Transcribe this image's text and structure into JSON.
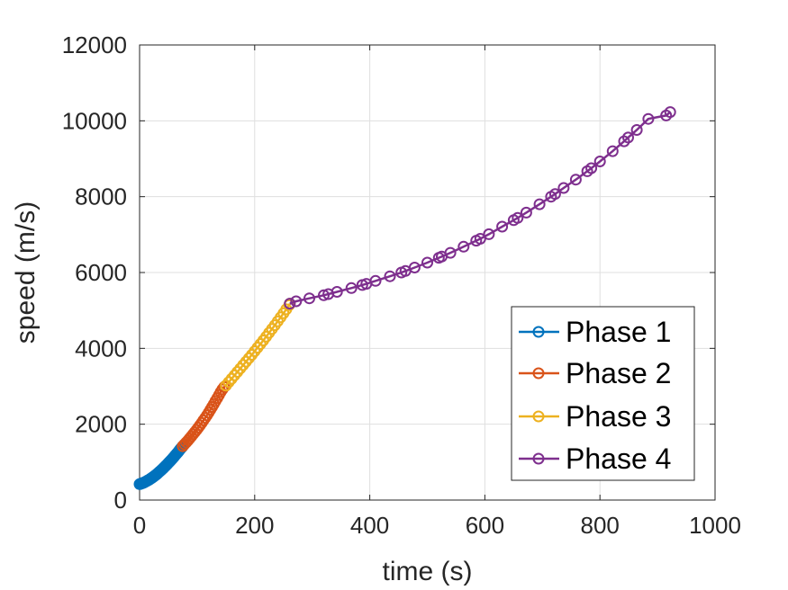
{
  "chart_data": {
    "type": "line",
    "xlabel": "time (s)",
    "ylabel": "speed (m/s)",
    "xlim": [
      0,
      1000
    ],
    "ylim": [
      0,
      12000
    ],
    "xticks": [
      0,
      200,
      400,
      600,
      800,
      1000
    ],
    "yticks": [
      0,
      2000,
      4000,
      6000,
      8000,
      10000,
      12000
    ],
    "xtick_labels": [
      "0",
      "200",
      "400",
      "600",
      "800",
      "1000"
    ],
    "ytick_labels": [
      "0",
      "2000",
      "4000",
      "6000",
      "8000",
      "10000",
      "12000"
    ],
    "grid": true,
    "legend_position": "bottom-right",
    "marker": "circle",
    "series": [
      {
        "name": "Phase 1",
        "color": "#0072BD",
        "x": [
          0,
          1,
          2,
          3,
          4,
          5,
          6,
          7,
          8,
          10,
          12,
          14,
          16,
          18,
          20,
          22,
          24,
          26,
          28,
          30,
          32,
          34,
          36,
          38,
          40,
          42,
          44,
          46,
          48,
          50,
          52,
          54,
          56,
          58,
          60,
          62,
          64,
          66,
          68,
          70,
          72,
          74,
          75
        ],
        "y": [
          420,
          425,
          430,
          435,
          440,
          446,
          452,
          459,
          466,
          481,
          497,
          514,
          532,
          551,
          571,
          592,
          614,
          637,
          661,
          686,
          712,
          739,
          766,
          794,
          823,
          852,
          882,
          913,
          944,
          976,
          1008,
          1041,
          1075,
          1109,
          1144,
          1180,
          1216,
          1252,
          1290,
          1328,
          1366,
          1400,
          1420
        ]
      },
      {
        "name": "Phase 2",
        "color": "#D95319",
        "x": [
          75,
          78,
          81,
          84,
          87,
          90,
          93,
          96,
          99,
          102,
          105,
          108,
          111,
          114,
          117,
          120,
          123,
          126,
          129,
          132,
          135,
          138,
          141,
          144,
          147,
          150
        ],
        "y": [
          1420,
          1470,
          1520,
          1570,
          1625,
          1680,
          1735,
          1790,
          1850,
          1910,
          1970,
          2035,
          2100,
          2165,
          2235,
          2305,
          2380,
          2455,
          2530,
          2610,
          2690,
          2770,
          2850,
          2920,
          2980,
          3020
        ]
      },
      {
        "name": "Phase 3",
        "color": "#EDB120",
        "x": [
          150,
          155,
          160,
          165,
          170,
          175,
          180,
          185,
          190,
          195,
          200,
          205,
          210,
          215,
          220,
          225,
          230,
          235,
          240,
          245,
          250,
          255,
          260,
          261
        ],
        "y": [
          3020,
          3110,
          3200,
          3290,
          3380,
          3470,
          3560,
          3650,
          3740,
          3830,
          3925,
          4020,
          4115,
          4210,
          4310,
          4410,
          4510,
          4610,
          4715,
          4820,
          4925,
          5030,
          5140,
          5180
        ]
      },
      {
        "name": "Phase 4",
        "color": "#7E2F8E",
        "x": [
          261,
          272,
          295,
          320,
          328,
          343,
          368,
          387,
          394,
          410,
          435,
          455,
          462,
          478,
          500,
          520,
          525,
          540,
          563,
          585,
          592,
          607,
          630,
          650,
          657,
          672,
          695,
          715,
          722,
          737,
          758,
          778,
          785,
          800,
          822,
          842,
          849,
          864,
          884,
          915,
          922
        ],
        "y": [
          5180,
          5240,
          5320,
          5400,
          5430,
          5490,
          5590,
          5670,
          5700,
          5780,
          5900,
          6000,
          6040,
          6130,
          6260,
          6390,
          6420,
          6520,
          6680,
          6840,
          6890,
          7010,
          7210,
          7380,
          7440,
          7580,
          7800,
          8000,
          8070,
          8230,
          8450,
          8670,
          8750,
          8930,
          9200,
          9460,
          9560,
          9760,
          10050,
          10140,
          10230
        ]
      }
    ]
  }
}
